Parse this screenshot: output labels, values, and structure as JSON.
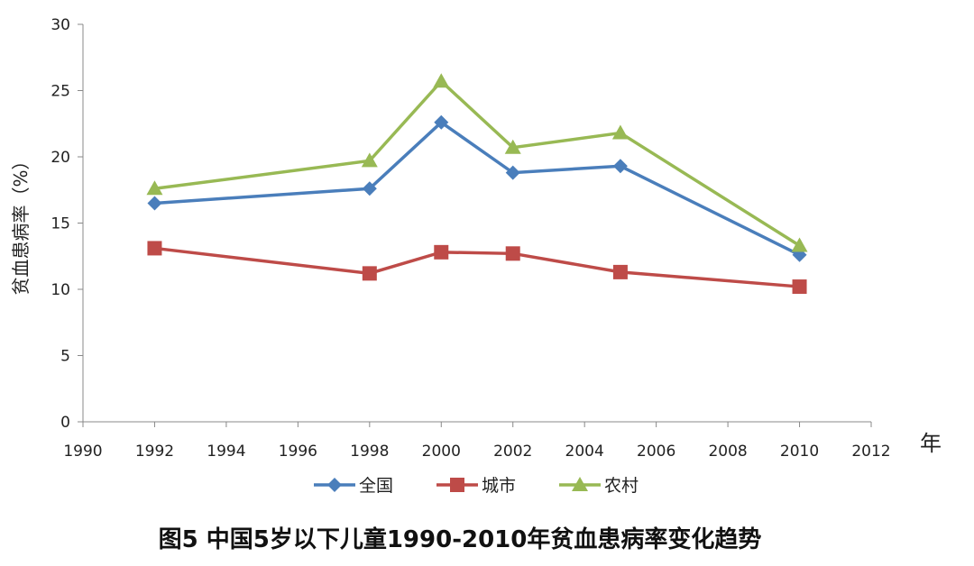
{
  "chart_data": {
    "type": "line",
    "title": "图5 中国5岁以下儿童1990-2010年贫血患病率变化趋势",
    "xlabel": "年",
    "ylabel": "贫血患病率（%）",
    "xlim": [
      1990,
      2012
    ],
    "ylim": [
      0,
      30
    ],
    "xticks": [
      1990,
      1992,
      1994,
      1996,
      1998,
      2000,
      2002,
      2004,
      2006,
      2008,
      2010,
      2012
    ],
    "yticks": [
      0,
      5,
      10,
      15,
      20,
      25,
      30
    ],
    "grid": false,
    "legend_position": "bottom",
    "x": [
      1992,
      1998,
      2000,
      2002,
      2005,
      2010
    ],
    "series": [
      {
        "name": "全国",
        "color": "#4a7ebb",
        "marker": "diamond",
        "values": [
          16.5,
          17.6,
          22.6,
          18.8,
          19.3,
          12.6
        ]
      },
      {
        "name": "城市",
        "color": "#be4b48",
        "marker": "square",
        "values": [
          13.1,
          11.2,
          12.8,
          12.7,
          11.3,
          10.2
        ]
      },
      {
        "name": "农村",
        "color": "#98b954",
        "marker": "triangle",
        "values": [
          17.6,
          19.7,
          25.7,
          20.7,
          21.8,
          13.3
        ]
      }
    ]
  }
}
